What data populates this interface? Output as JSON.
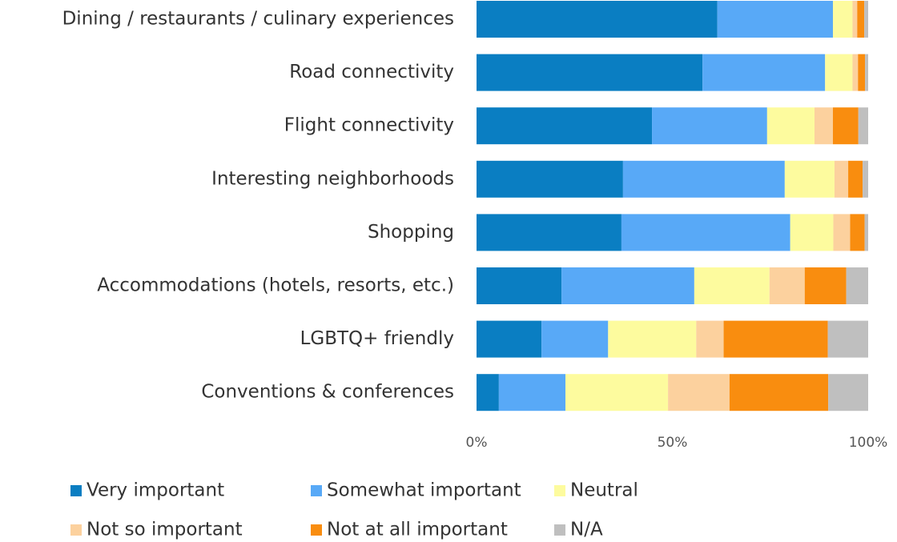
{
  "chart_data": {
    "type": "stacked-bar-horizontal",
    "categories": [
      "Dining / restaurants / culinary experiences",
      "Road connectivity",
      "Flight connectivity",
      "Interesting neighborhoods",
      "Shopping",
      "Accommodations (hotels, resorts, etc.)",
      "LGBTQ+ friendly",
      "Conventions & conferences"
    ],
    "series": [
      {
        "name": "Very important",
        "color": "#0a7ec2",
        "values": [
          61.5,
          57.7,
          44.8,
          37.4,
          37,
          21.7,
          16.6,
          5.7
        ]
      },
      {
        "name": "Somewhat important",
        "color": "#58a9f7",
        "values": [
          29.5,
          31.3,
          29.4,
          41.3,
          43.1,
          33.9,
          17,
          17
        ]
      },
      {
        "name": "Neutral",
        "color": "#fdfb9e",
        "values": [
          5,
          7,
          12.1,
          12.7,
          11,
          19.2,
          22.5,
          26.2
        ]
      },
      {
        "name": "Not so important",
        "color": "#fcd19e",
        "values": [
          1.2,
          1.4,
          4.7,
          3.5,
          4.3,
          9,
          7,
          15.7
        ]
      },
      {
        "name": "Not at all important",
        "color": "#f98d0f",
        "values": [
          1.8,
          1.8,
          6.5,
          3.7,
          3.7,
          10.6,
          26.6,
          25.2
        ]
      },
      {
        "name": "N/A",
        "color": "#bfbfbf",
        "values": [
          1,
          0.8,
          2.5,
          1.4,
          0.9,
          5.6,
          10.3,
          10.2
        ]
      }
    ],
    "xlim": [
      0,
      100
    ],
    "xticks": [
      {
        "value": 0,
        "label": "0%"
      },
      {
        "value": 50,
        "label": "50%"
      },
      {
        "value": 100,
        "label": "100%"
      }
    ],
    "legend": "bottom"
  }
}
